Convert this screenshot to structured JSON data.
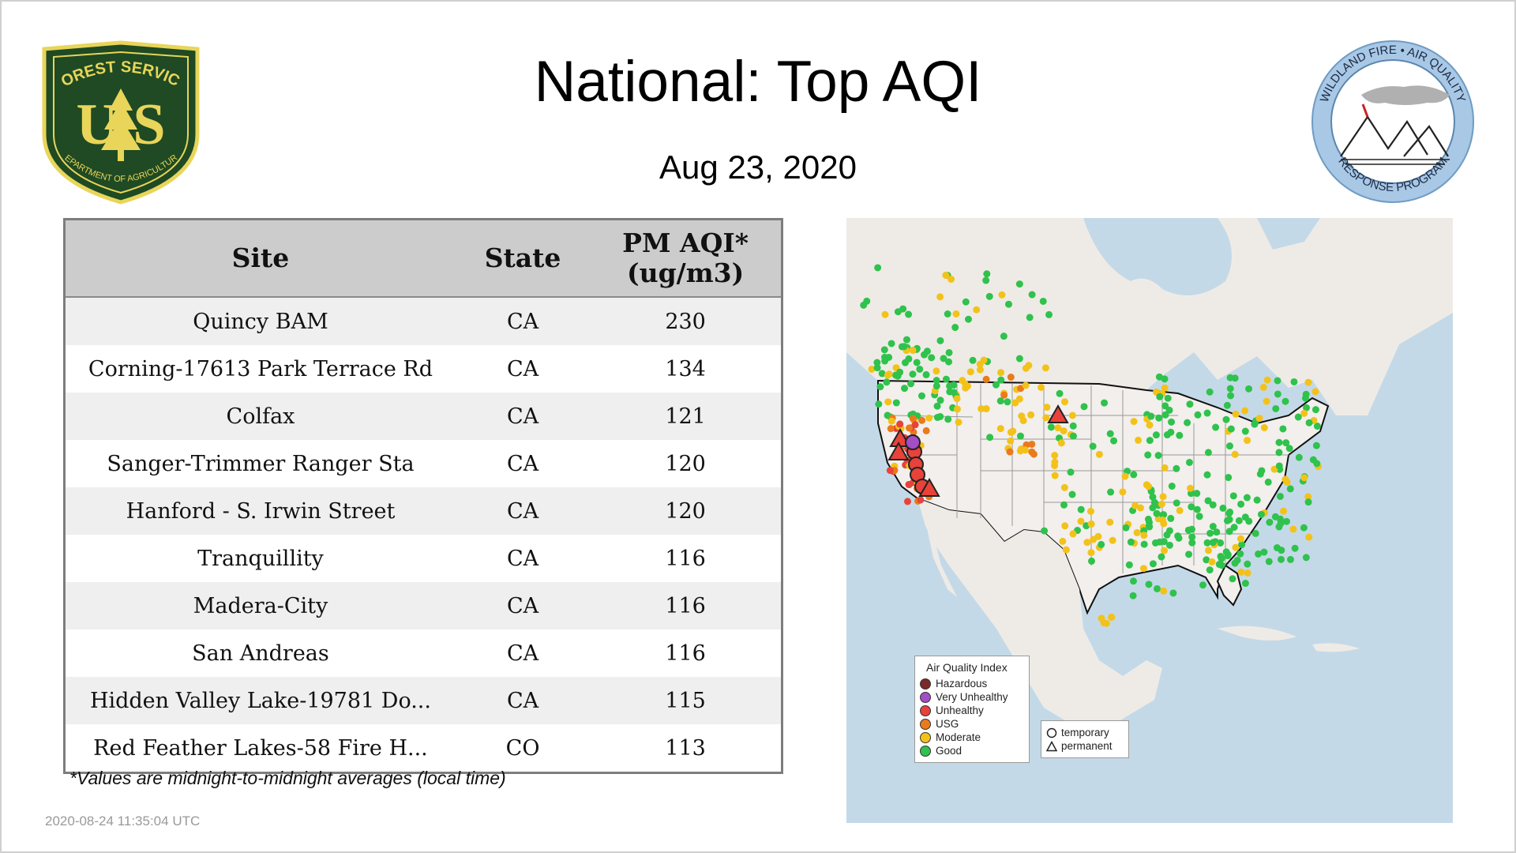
{
  "page": {
    "title": "National: Top AQI",
    "date": "Aug 23, 2020",
    "footnote": "*Values are midnight-to-midnight averages (local time)",
    "timestamp": "2020-08-24 11:35:04 UTC"
  },
  "logos": {
    "forest_service": {
      "top_text": "FOREST SERVICE",
      "letters": "U S",
      "bottom_text": "DEPARTMENT OF AGRICULTURE",
      "colors": {
        "shield": "#1f4a23",
        "gold": "#e8d55a"
      }
    },
    "wildland_fire": {
      "top_text": "WILDLAND FIRE • AIR QUALITY",
      "bottom_text": "RESPONSE PROGRAM",
      "colors": {
        "ring": "#a8c8e6",
        "smoke": "#b0b0b0",
        "flag": "#cc2222"
      }
    }
  },
  "table": {
    "headers": {
      "site": "Site",
      "state": "State",
      "aqi_line1": "PM AQI*",
      "aqi_line2": "(ug/m3)"
    },
    "rows": [
      {
        "site": "Quincy BAM",
        "state": "CA",
        "aqi": "230"
      },
      {
        "site": "Corning-17613 Park Terrace Rd",
        "state": "CA",
        "aqi": "134"
      },
      {
        "site": "Colfax",
        "state": "CA",
        "aqi": "121"
      },
      {
        "site": "Sanger-Trimmer Ranger Sta",
        "state": "CA",
        "aqi": "120"
      },
      {
        "site": "Hanford - S. Irwin Street",
        "state": "CA",
        "aqi": "120"
      },
      {
        "site": "Tranquillity",
        "state": "CA",
        "aqi": "116"
      },
      {
        "site": "Madera-City",
        "state": "CA",
        "aqi": "116"
      },
      {
        "site": "San Andreas",
        "state": "CA",
        "aqi": "116"
      },
      {
        "site": "Hidden Valley Lake-19781 Do...",
        "state": "CA",
        "aqi": "115"
      },
      {
        "site": "Red Feather Lakes-58 Fire H...",
        "state": "CO",
        "aqi": "113"
      }
    ]
  },
  "map": {
    "colors": {
      "water": "#c4d9e8",
      "land": "#eeebe6",
      "border": "#111111"
    },
    "legend": {
      "title": "Air Quality Index",
      "categories": [
        {
          "label": "Hazardous",
          "color": "#7a2a28"
        },
        {
          "label": "Very Unhealthy",
          "color": "#a24ec4"
        },
        {
          "label": "Unhealthy",
          "color": "#e8423a"
        },
        {
          "label": "USG",
          "color": "#ea7a1c"
        },
        {
          "label": "Moderate",
          "color": "#f3c21a"
        },
        {
          "label": "Good",
          "color": "#2fc24c"
        }
      ]
    },
    "shape_legend": {
      "temporary": "temporary",
      "permanent": "permanent"
    }
  }
}
